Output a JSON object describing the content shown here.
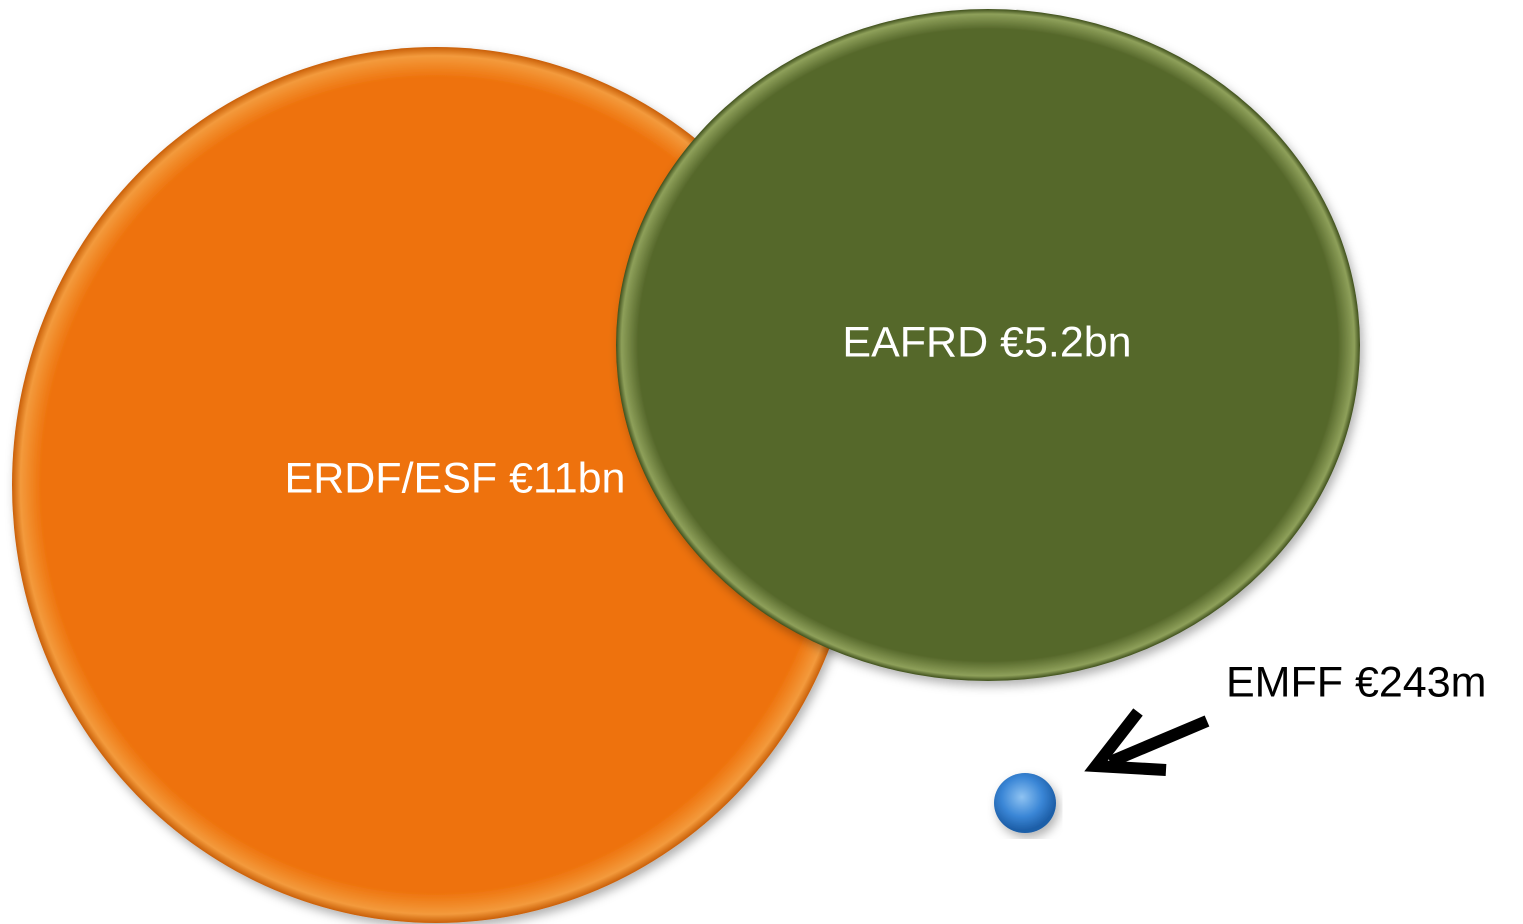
{
  "nodes": [
    {
      "label": "ERDF/ESF €11bn"
    },
    {
      "label": "EAFRD €5.2bn"
    },
    {
      "label": "EMFF €243m"
    }
  ]
}
